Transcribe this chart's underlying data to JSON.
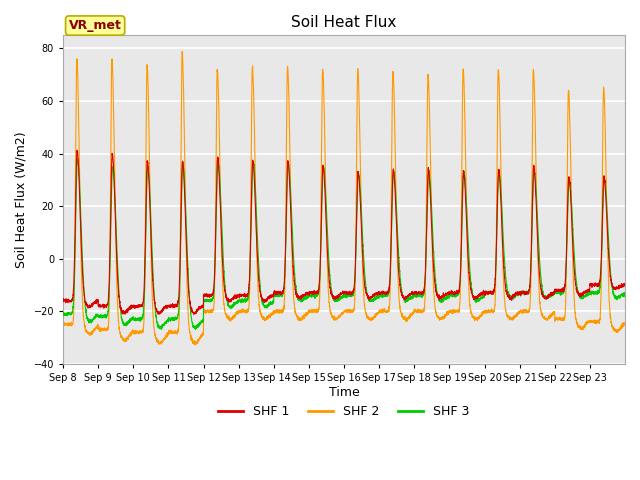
{
  "title": "Soil Heat Flux",
  "ylabel": "Soil Heat Flux (W/m2)",
  "xlabel": "Time",
  "ylim": [
    -40,
    85
  ],
  "yticks": [
    -40,
    -20,
    0,
    20,
    40,
    60,
    80
  ],
  "colors": {
    "SHF 1": "#dd0000",
    "SHF 2": "#ff9900",
    "SHF 3": "#00cc00"
  },
  "bg_color": "#e8e8e8",
  "legend_label": "VR_met",
  "x_tick_labels": [
    "Sep 8",
    "Sep 9",
    "Sep 10",
    "Sep 11",
    "Sep 12",
    "Sep 13",
    "Sep 14",
    "Sep 15",
    "Sep 16",
    "Sep 17",
    "Sep 18",
    "Sep 19",
    "Sep 20",
    "Sep 21",
    "Sep 22",
    "Sep 23"
  ],
  "n_days": 16,
  "points_per_day": 288,
  "shf1_day_peaks": [
    41,
    40,
    37,
    37,
    38,
    37,
    37,
    35,
    33,
    34,
    34,
    33,
    34,
    35,
    31,
    31
  ],
  "shf2_day_peaks": [
    76,
    76,
    74,
    79,
    72,
    73,
    73,
    72,
    72,
    71,
    70,
    72,
    72,
    72,
    64,
    65
  ],
  "shf3_day_peaks": [
    38,
    35,
    35,
    36,
    37,
    37,
    36,
    35,
    32,
    33,
    33,
    33,
    33,
    33,
    30,
    30
  ],
  "shf1_night_vals": [
    -16,
    -18,
    -18,
    -18,
    -14,
    -14,
    -13,
    -13,
    -13,
    -13,
    -13,
    -13,
    -13,
    -13,
    -12,
    -10
  ],
  "shf2_night_vals": [
    -25,
    -27,
    -28,
    -28,
    -20,
    -20,
    -20,
    -20,
    -20,
    -20,
    -20,
    -20,
    -20,
    -20,
    -23,
    -24
  ],
  "shf3_night_vals": [
    -21,
    -22,
    -23,
    -23,
    -16,
    -16,
    -14,
    -14,
    -14,
    -14,
    -14,
    -14,
    -13,
    -13,
    -13,
    -13
  ]
}
